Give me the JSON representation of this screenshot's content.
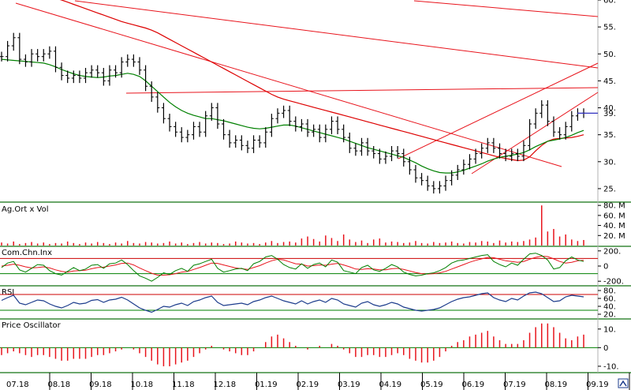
{
  "chart_data": {
    "type": "stock-chart",
    "grid": false,
    "x_ticks": [
      "07.18",
      "08.18",
      "09.18",
      "10.18",
      "11.18",
      "12.18",
      "01.19",
      "02.19",
      "03.19",
      "04.19",
      "05.19",
      "06.19",
      "07.19",
      "08.19",
      "09.19"
    ],
    "price_panel": {
      "ylim": [
        22.5,
        60
      ],
      "y_ticks": [
        25,
        30,
        35,
        40,
        45,
        50,
        55,
        60
      ],
      "y_tick_labels": [
        "25.",
        "30.",
        "35.",
        "40.",
        "45.",
        "50.",
        "55.",
        "60."
      ],
      "last_value": 39,
      "last_label": "39.",
      "close": [
        49.5,
        51.5,
        53.0,
        49.0,
        48.5,
        50.0,
        49.5,
        50.0,
        50.5,
        47.5,
        46.0,
        45.5,
        46.0,
        45.5,
        46.5,
        47.0,
        46.5,
        45.0,
        47.0,
        46.5,
        48.5,
        49.0,
        48.5,
        47.0,
        44.0,
        42.0,
        40.0,
        38.0,
        36.5,
        35.5,
        34.5,
        35.0,
        36.5,
        35.5,
        38.5,
        40.0,
        37.0,
        35.0,
        33.5,
        34.0,
        33.0,
        32.5,
        34.0,
        33.5,
        35.5,
        38.0,
        39.0,
        39.5,
        37.5,
        36.5,
        37.0,
        35.5,
        36.0,
        34.5,
        36.0,
        37.5,
        36.0,
        34.5,
        32.5,
        32.0,
        33.5,
        32.0,
        31.5,
        30.5,
        31.0,
        32.0,
        31.5,
        30.0,
        28.5,
        27.0,
        26.5,
        25.5,
        25.0,
        25.5,
        26.5,
        27.5,
        28.5,
        29.5,
        30.5,
        31.5,
        32.5,
        33.5,
        32.5,
        31.5,
        31.0,
        31.5,
        31.0,
        33.0,
        37.0,
        39.0,
        40.5,
        37.5,
        35.5,
        35.0,
        36.5,
        38.5,
        39.0,
        39.0
      ],
      "ma_green": [
        49.0,
        48.9,
        48.8,
        48.7,
        48.6,
        48.5,
        48.4,
        48.3,
        48.0,
        47.6,
        47.1,
        46.7,
        46.3,
        46.0,
        45.8,
        45.7,
        45.6,
        45.7,
        45.9,
        46.0,
        46.2,
        46.4,
        46.2,
        45.8,
        45.0,
        44.0,
        43.0,
        42.0,
        41.0,
        40.2,
        39.5,
        39.0,
        38.6,
        38.3,
        38.0,
        38.0,
        37.8,
        37.6,
        37.3,
        37.0,
        36.7,
        36.4,
        36.2,
        36.1,
        36.2,
        36.4,
        36.6,
        36.8,
        36.8,
        36.6,
        36.3,
        36.0,
        35.7,
        35.4,
        35.1,
        34.8,
        34.5,
        34.2,
        33.8,
        33.4,
        33.0,
        32.6,
        32.3,
        32.0,
        31.7,
        31.4,
        31.1,
        30.8,
        30.3,
        29.8,
        29.2,
        28.7,
        28.3,
        28.0,
        27.9,
        27.9,
        28.1,
        28.4,
        28.8,
        29.2,
        29.6,
        30.1,
        30.5,
        30.8,
        31.0,
        31.2,
        31.4,
        31.7,
        32.2,
        32.8,
        33.3,
        33.8,
        34.0,
        34.2,
        34.5,
        34.9,
        35.4,
        35.8
      ],
      "ma_red": [
        63.0,
        62.7,
        62.4,
        62.1,
        61.8,
        61.5,
        61.2,
        60.9,
        60.6,
        60.3,
        60.0,
        59.6,
        59.2,
        58.8,
        58.4,
        58.0,
        57.6,
        57.2,
        56.8,
        56.4,
        56.0,
        55.7,
        55.4,
        55.1,
        54.8,
        54.4,
        53.9,
        53.3,
        52.7,
        52.1,
        51.5,
        50.9,
        50.3,
        49.7,
        49.1,
        48.5,
        47.9,
        47.3,
        46.7,
        46.1,
        45.5,
        44.9,
        44.3,
        43.7,
        43.1,
        42.5,
        42.0,
        41.6,
        41.3,
        41.0,
        40.7,
        40.4,
        40.1,
        39.8,
        39.5,
        39.2,
        38.9,
        38.6,
        38.3,
        38.0,
        37.7,
        37.4,
        37.1,
        36.8,
        36.5,
        36.2,
        35.9,
        35.6,
        35.3,
        35.0,
        34.7,
        34.4,
        34.1,
        33.8,
        33.5,
        33.2,
        32.9,
        32.6,
        32.3,
        32.0,
        31.7,
        31.4,
        31.1,
        30.8,
        30.6,
        30.4,
        30.2,
        30.3,
        30.9,
        32.0,
        33.0,
        33.8,
        34.2,
        34.3,
        34.4,
        34.5,
        34.7,
        35.0
      ]
    },
    "volume_panel": {
      "title": "Ag.Ort x Vol",
      "y_tick_labels": [
        "80. M",
        "60. M",
        "40. M",
        "20. M"
      ],
      "y_ticks": [
        80,
        60,
        40,
        20
      ],
      "ylim": [
        0,
        85
      ],
      "values": [
        6,
        4,
        8,
        3,
        5,
        7,
        4,
        6,
        3,
        5,
        4,
        8,
        5,
        3,
        6,
        4,
        7,
        5,
        3,
        6,
        4,
        9,
        5,
        4,
        7,
        6,
        4,
        5,
        8,
        4,
        6,
        3,
        5,
        7,
        4,
        6,
        5,
        3,
        4,
        8,
        6,
        4,
        5,
        3,
        6,
        9,
        5,
        7,
        8,
        6,
        14,
        18,
        13,
        8,
        20,
        15,
        9,
        22,
        12,
        7,
        10,
        5,
        12,
        14,
        6,
        8,
        7,
        5,
        6,
        9,
        5,
        4,
        7,
        5,
        6,
        8,
        5,
        4,
        7,
        6,
        9,
        8,
        5,
        10,
        6,
        8,
        7,
        9,
        12,
        16,
        80,
        28,
        33,
        18,
        22,
        12,
        9,
        11
      ]
    },
    "cci_panel": {
      "title": "Com.Chn.Inx",
      "y_tick_labels": [
        "200.",
        "0",
        "-200."
      ],
      "y_ticks": [
        200,
        0,
        -200
      ],
      "bands": [
        100,
        -100
      ],
      "ylim": [
        -250,
        250
      ],
      "cci": [
        -20,
        40,
        60,
        -50,
        -80,
        -30,
        20,
        10,
        -60,
        -100,
        -120,
        -70,
        -20,
        -60,
        -40,
        10,
        20,
        -30,
        30,
        40,
        80,
        20,
        -60,
        -130,
        -160,
        -200,
        -150,
        -90,
        -110,
        -60,
        -30,
        -70,
        10,
        30,
        60,
        90,
        -30,
        -80,
        -60,
        -40,
        -30,
        -60,
        30,
        60,
        120,
        140,
        90,
        20,
        -20,
        -40,
        30,
        -30,
        20,
        40,
        -10,
        80,
        50,
        -60,
        -80,
        -100,
        -20,
        10,
        -50,
        -70,
        -30,
        20,
        -10,
        -80,
        -110,
        -130,
        -120,
        -100,
        -90,
        -60,
        -20,
        40,
        70,
        80,
        100,
        120,
        140,
        150,
        60,
        20,
        -10,
        40,
        10,
        90,
        160,
        170,
        140,
        80,
        -40,
        -20,
        70,
        120,
        80,
        60
      ],
      "signal": [
        0,
        10,
        25,
        10,
        -10,
        -25,
        -20,
        -10,
        -25,
        -50,
        -70,
        -80,
        -65,
        -60,
        -55,
        -35,
        -20,
        -15,
        0,
        15,
        35,
        40,
        15,
        -25,
        -60,
        -95,
        -120,
        -120,
        -115,
        -100,
        -80,
        -70,
        -45,
        -20,
        10,
        40,
        35,
        15,
        -5,
        -25,
        -35,
        -45,
        -20,
        5,
        40,
        70,
        90,
        80,
        55,
        30,
        25,
        0,
        5,
        15,
        10,
        25,
        35,
        15,
        -10,
        -40,
        -45,
        -35,
        -40,
        -50,
        -50,
        -35,
        -30,
        -45,
        -65,
        -85,
        -100,
        -105,
        -100,
        -90,
        -70,
        -40,
        -10,
        20,
        50,
        75,
        95,
        115,
        110,
        90,
        70,
        60,
        50,
        60,
        90,
        115,
        130,
        125,
        95,
        60,
        40,
        50,
        70,
        75
      ]
    },
    "rsi_panel": {
      "title": "RSI",
      "y_tick_labels": [
        "80.",
        "60.",
        "40.",
        "20."
      ],
      "y_ticks": [
        80,
        60,
        40,
        20
      ],
      "bands": [
        70,
        30
      ],
      "ylim": [
        10,
        90
      ],
      "values": [
        55,
        62,
        68,
        48,
        44,
        50,
        56,
        54,
        46,
        40,
        36,
        42,
        50,
        46,
        48,
        55,
        57,
        50,
        56,
        58,
        63,
        56,
        46,
        36,
        30,
        25,
        32,
        40,
        38,
        44,
        48,
        42,
        52,
        56,
        62,
        66,
        50,
        42,
        44,
        46,
        48,
        44,
        52,
        56,
        62,
        66,
        60,
        54,
        50,
        46,
        54,
        46,
        52,
        56,
        50,
        60,
        56,
        46,
        42,
        38,
        48,
        52,
        44,
        40,
        44,
        50,
        46,
        38,
        34,
        30,
        28,
        30,
        32,
        36,
        44,
        52,
        58,
        62,
        64,
        68,
        72,
        74,
        62,
        56,
        52,
        60,
        56,
        66,
        74,
        76,
        72,
        62,
        52,
        54,
        64,
        68,
        66,
        64
      ]
    },
    "osc_panel": {
      "title": "Price Oscillator",
      "y_tick_labels": [
        "10.",
        "0",
        "-10."
      ],
      "y_ticks": [
        10,
        0,
        -10
      ],
      "ylim": [
        -13,
        15
      ],
      "values": [
        -4,
        -3,
        -2,
        -3,
        -4,
        -5,
        -4,
        -4,
        -5,
        -6,
        -7,
        -7,
        -6,
        -6,
        -6,
        -5,
        -4,
        -4,
        -3,
        -2,
        -1,
        0,
        -1,
        -3,
        -5,
        -7,
        -9,
        -10,
        -10,
        -9,
        -8,
        -7,
        -5,
        -3,
        -1,
        1,
        0,
        -1,
        -2,
        -3,
        -4,
        -4,
        -2,
        0,
        3,
        6,
        7,
        5,
        3,
        1,
        0,
        -1,
        0,
        1,
        0,
        2,
        1,
        -1,
        -3,
        -5,
        -5,
        -4,
        -4,
        -5,
        -5,
        -4,
        -3,
        -4,
        -6,
        -7,
        -8,
        -8,
        -7,
        -5,
        -2,
        1,
        3,
        4,
        6,
        7,
        8,
        9,
        6,
        4,
        2,
        2,
        2,
        4,
        8,
        11,
        13,
        13,
        11,
        8,
        5,
        4,
        6,
        7
      ]
    }
  },
  "colors": {
    "price": "#000000",
    "ma_green": "#008000",
    "ma_red": "#dd0000",
    "trend": "#e8141c",
    "last_value_line": "#3030c0",
    "volume": "#e8141c",
    "cci": "#008000",
    "signal": "#e8141c",
    "rsi": "#1c3c8c",
    "band_upper": "#cc0000",
    "band_lower": "#008000",
    "osc": "#e8141c",
    "separator": "#3a8a3a"
  }
}
